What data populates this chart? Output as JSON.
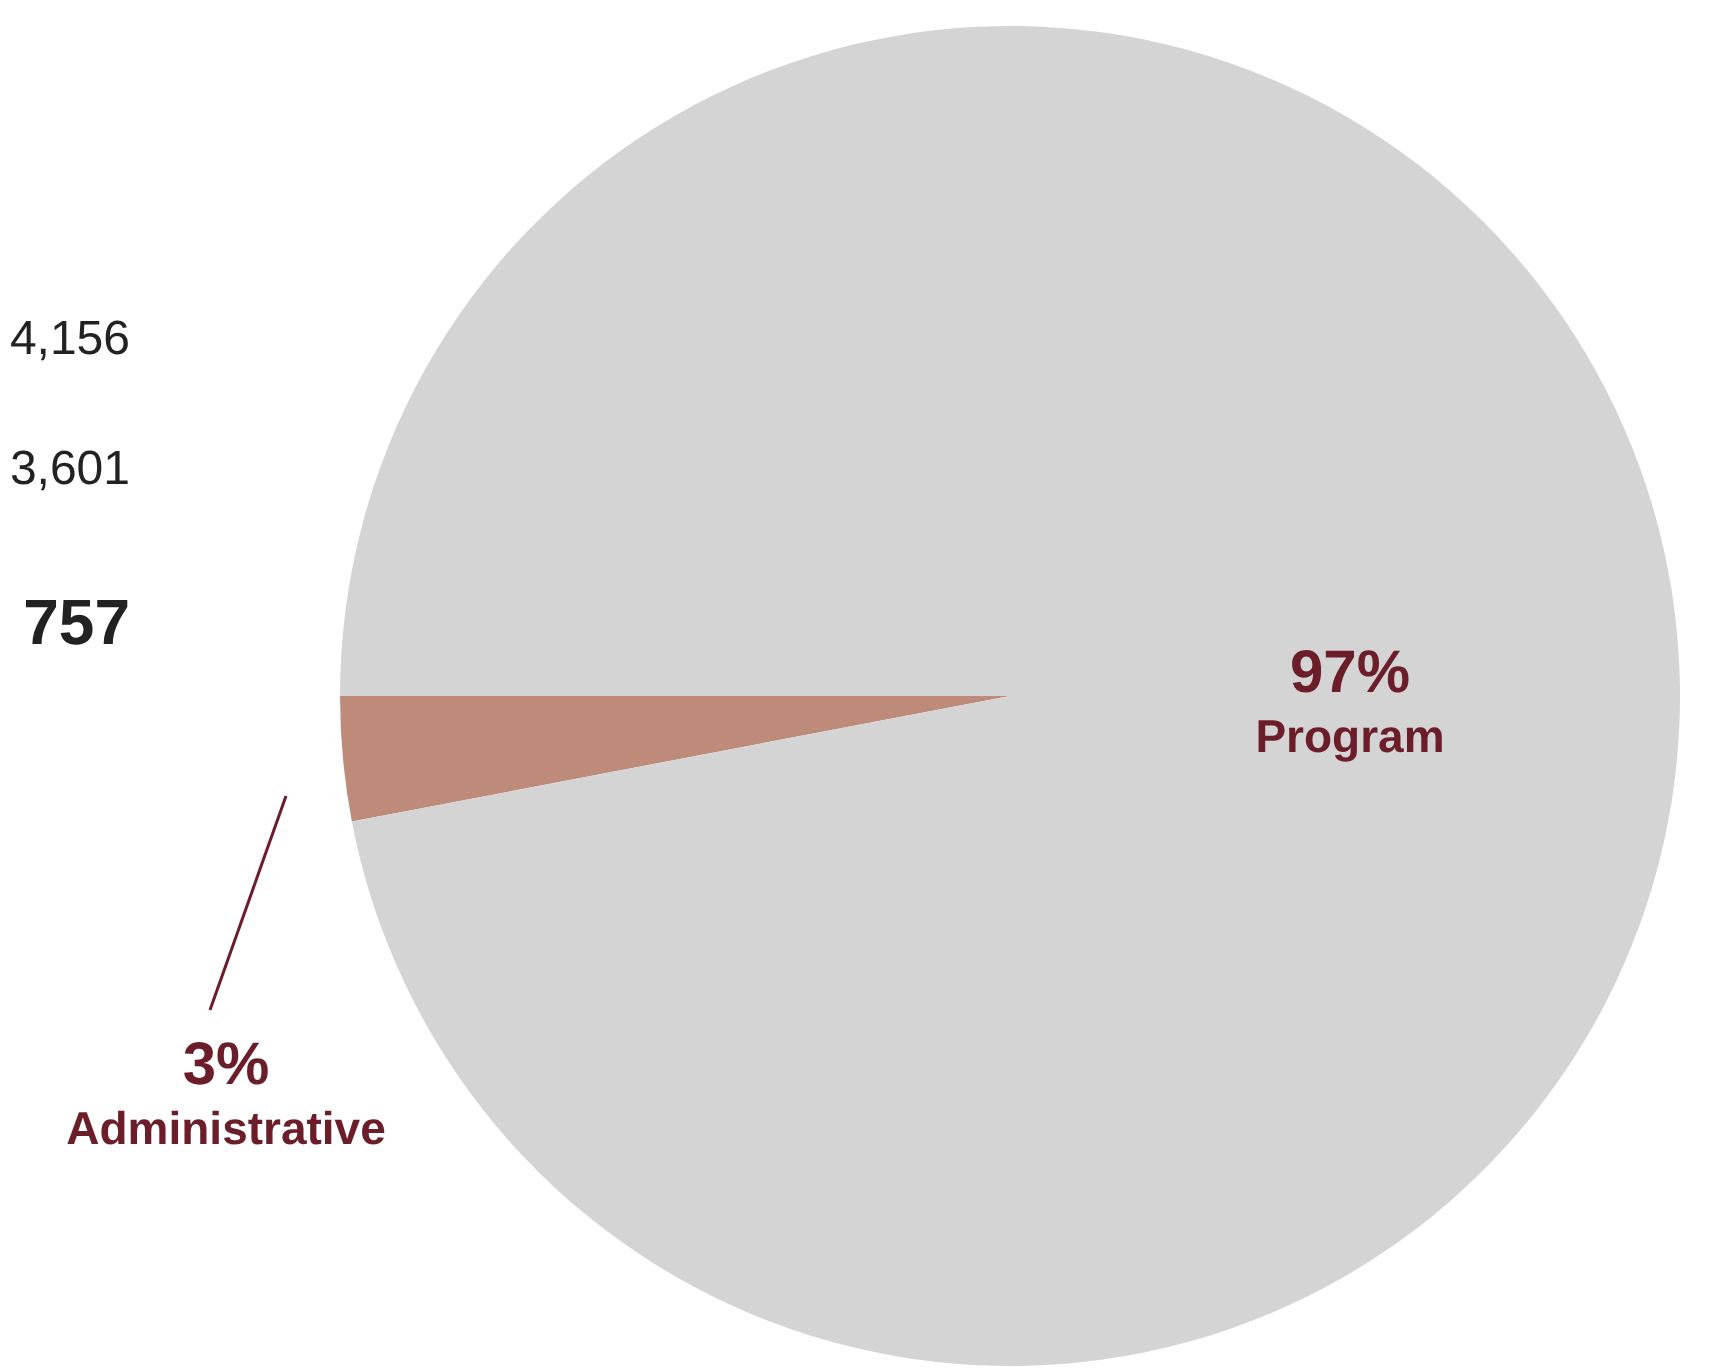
{
  "chart_data": {
    "type": "pie",
    "categories": [
      "Administrative",
      "Program"
    ],
    "values": [
      3,
      97
    ],
    "colors": [
      "#be8b7b",
      "#d4d4d4"
    ],
    "value_labels": [
      "3%",
      "97%"
    ],
    "annotations": [
      "4,156",
      "3,601",
      "757"
    ]
  }
}
